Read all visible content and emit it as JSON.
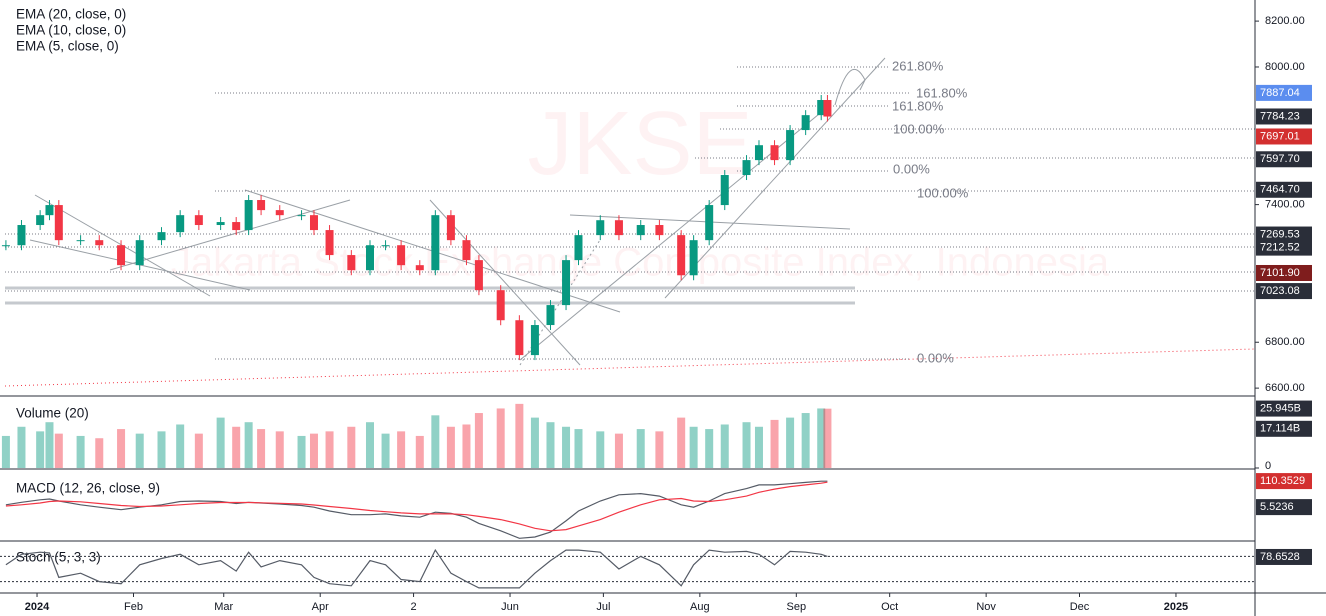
{
  "chart_data": {
    "type": "candlestick",
    "watermark": "JKSE",
    "watermark_sub": "Jakarta Stock Exchange Composite Index, Indonesia",
    "indicators": [
      "EMA (20, close, 0)",
      "EMA (10, close, 0)",
      "EMA (5, close, 0)"
    ],
    "x": [
      -10,
      -5,
      1,
      4,
      7,
      14,
      20,
      27,
      33,
      40,
      46,
      52,
      59,
      64,
      68,
      72,
      78,
      85,
      89,
      94,
      101,
      107,
      112,
      117,
      123,
      128,
      133,
      138,
      142,
      149,
      155,
      160,
      165,
      170,
      174,
      181,
      187,
      194,
      200,
      207,
      211,
      216,
      221,
      228,
      232,
      237,
      242,
      247,
      252,
      254
    ],
    "close": [
      7223,
      7311,
      7354,
      7398,
      7245,
      7245,
      7223,
      7136,
      7245,
      7280,
      7354,
      7311,
      7324,
      7289,
      7420,
      7376,
      7354,
      7354,
      7289,
      7180,
      7114,
      7223,
      7223,
      7136,
      7114,
      7354,
      7245,
      7158,
      7027,
      6896,
      6744,
      6875,
      6962,
      7158,
      7267,
      7332,
      7267,
      7311,
      7267,
      7092,
      7245,
      7398,
      7529,
      7594,
      7659,
      7594,
      7725,
      7790,
      7856,
      7784
    ],
    "up_color": "#089981",
    "down_color": "#f23645",
    "xlim": [
      -11.9,
      391.4
    ],
    "xticks": [
      {
        "value": 0,
        "label": "2024"
      },
      {
        "value": 31,
        "label": "Feb"
      },
      {
        "value": 60,
        "label": "Mar"
      },
      {
        "value": 91,
        "label": "Apr"
      },
      {
        "value": 121,
        "label": "2"
      },
      {
        "value": 152,
        "label": "Jun"
      },
      {
        "value": 182,
        "label": "Jul"
      },
      {
        "value": 213,
        "label": "Aug"
      },
      {
        "value": 244,
        "label": "Sep"
      },
      {
        "value": 274,
        "label": "Oct"
      },
      {
        "value": 305,
        "label": "Nov"
      },
      {
        "value": 335,
        "label": "Dec"
      },
      {
        "value": 366,
        "label": "2025"
      }
    ],
    "ylim": [
      6570,
      8292
    ],
    "yticks": [
      {
        "value": 6600,
        "label": "6600.00"
      },
      {
        "value": 6800,
        "label": "6800.00"
      },
      {
        "value": 7400,
        "label": "7400.00"
      },
      {
        "value": 8000,
        "label": "8000.00"
      },
      {
        "value": 8200,
        "label": "8200.00"
      }
    ],
    "price_labels": [
      {
        "value": 7887.04,
        "label": "7887.04",
        "color": "#5b8def"
      },
      {
        "value": 7784.23,
        "label": "7784.23",
        "color": "#2a2e39"
      },
      {
        "value": 7697.01,
        "label": "7697.01",
        "color": "#d32f2f"
      },
      {
        "value": 7597.7,
        "label": "7597.70",
        "color": "#2a2e39"
      },
      {
        "value": 7464.7,
        "label": "7464.70",
        "color": "#2a2e39"
      },
      {
        "value": 7269.53,
        "label": "7269.53",
        "color": "#2a2e39"
      },
      {
        "value": 7212.52,
        "label": "7212.52",
        "color": "#2a2e39"
      },
      {
        "value": 7101.9,
        "label": "7101.90",
        "color": "#7f1d1d"
      },
      {
        "value": 7023.08,
        "label": "7023.08",
        "color": "#2a2e39"
      }
    ],
    "fib_labels": [
      "261.80%",
      "161.80%",
      "161.80%",
      "100.00%",
      "0.00%",
      "100.00%",
      "0.00%"
    ],
    "volume": {
      "title": "Volume (20)",
      "values": [
        14,
        18,
        16,
        20,
        15,
        14,
        13,
        17,
        15,
        16,
        19,
        15,
        22,
        18,
        20,
        17,
        16,
        14,
        15,
        16,
        18,
        20,
        15,
        16,
        14,
        23,
        18,
        19,
        24,
        26,
        28,
        22,
        20,
        18,
        17,
        16,
        15,
        17,
        16,
        22,
        18,
        17,
        19,
        20,
        18,
        21,
        22,
        24,
        26,
        25.9
      ],
      "ylim": [
        0,
        31
      ],
      "yticks": [
        0
      ],
      "labels": [
        {
          "value": 25.945,
          "label": "25.945B",
          "color": "#2a2e39"
        },
        {
          "value": 17.114,
          "label": "17.114B",
          "color": "#2a2e39"
        }
      ]
    },
    "macd": {
      "title": "MACD (12, 26, close, 9)",
      "macd": [
        15,
        25,
        35,
        38,
        30,
        15,
        5,
        -5,
        5,
        15,
        28,
        30,
        28,
        20,
        25,
        22,
        18,
        12,
        5,
        -10,
        -25,
        -25,
        -22,
        -30,
        -35,
        -15,
        -20,
        -35,
        -60,
        -90,
        -120,
        -115,
        -95,
        -50,
        -10,
        30,
        55,
        60,
        50,
        15,
        5,
        30,
        60,
        80,
        95,
        95,
        100,
        105,
        110,
        110
      ],
      "signal": [
        10,
        15,
        22,
        28,
        30,
        27,
        20,
        12,
        8,
        10,
        15,
        20,
        24,
        24,
        24,
        23,
        21,
        18,
        14,
        8,
        0,
        -8,
        -13,
        -18,
        -22,
        -22,
        -22,
        -25,
        -32,
        -45,
        -62,
        -80,
        -90,
        -85,
        -70,
        -45,
        -15,
        15,
        35,
        40,
        30,
        28,
        35,
        50,
        65,
        78,
        88,
        95,
        102,
        106
      ],
      "macd_color": "#555b66",
      "signal_color": "#f23645",
      "ylim": [
        -127,
        155
      ],
      "labels": [
        {
          "value": 110.3529,
          "label": "110.3529",
          "color": "#d32f2f"
        },
        {
          "value": 5.5236,
          "label": "5.5236",
          "color": "#2a2e39"
        }
      ]
    },
    "stoch": {
      "title": "Stoch (5, 3, 3)",
      "k": [
        60,
        85,
        90,
        88,
        30,
        40,
        20,
        15,
        60,
        75,
        85,
        60,
        70,
        45,
        90,
        55,
        70,
        60,
        30,
        15,
        10,
        70,
        60,
        25,
        20,
        95,
        40,
        20,
        5,
        5,
        5,
        40,
        70,
        95,
        95,
        90,
        50,
        80,
        60,
        10,
        60,
        95,
        90,
        92,
        85,
        60,
        92,
        90,
        85,
        80
      ],
      "color": "#555b66",
      "ylim": [
        -4.8,
        114.3
      ],
      "levels": [
        80,
        20
      ],
      "labels": [
        {
          "value": 78.6528,
          "label": "78.6528",
          "color": "#2a2e39"
        }
      ]
    }
  }
}
